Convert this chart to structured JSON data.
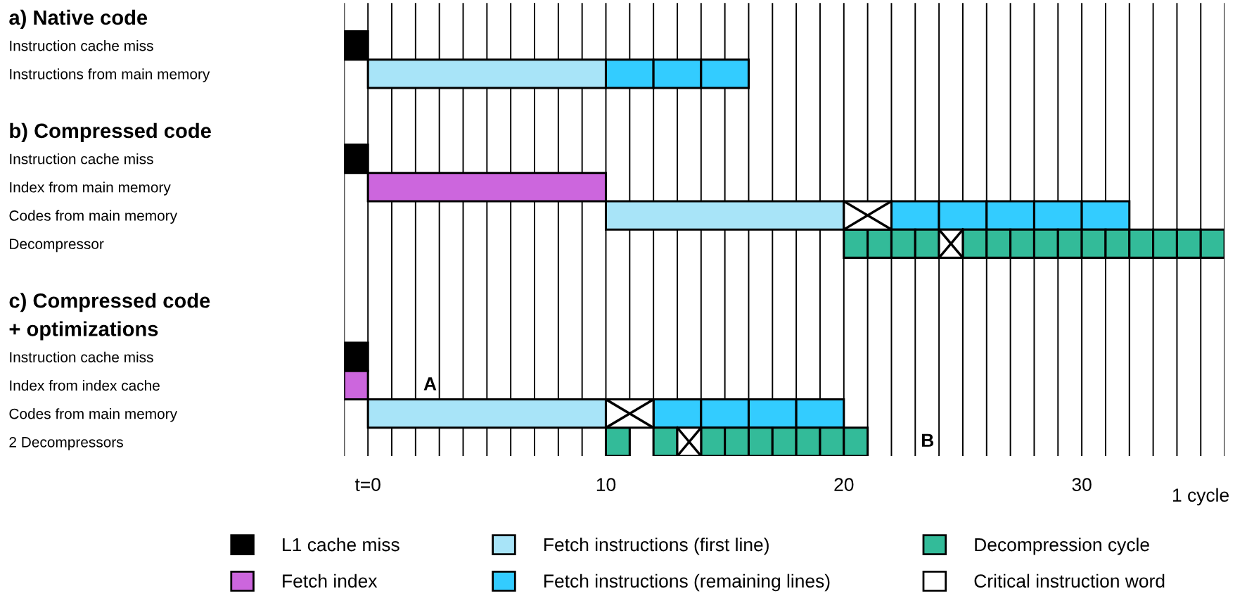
{
  "chart_data": {
    "type": "bar",
    "orientation": "horizontal",
    "categories": [
      "a) Native code",
      "Instruction cache miss",
      "Instructions from main memory",
      null,
      "b) Compressed code",
      "Instruction cache miss",
      "Index from main memory",
      "Codes from main memory",
      "Decompressor",
      null,
      "c) Compressed code",
      "+ optimizations",
      "Instruction cache miss",
      "Index from index cache",
      "Codes from main memory",
      "2 Decompressors"
    ],
    "series": [
      {
        "name": "L1 cache miss",
        "color": "#000000",
        "values": [
          null,
          1,
          null,
          null,
          null,
          1,
          null,
          null,
          null,
          null,
          null,
          null,
          1,
          null,
          null,
          null
        ],
        "base": [
          null,
          -1,
          null,
          null,
          null,
          -1,
          null,
          null,
          null,
          null,
          null,
          null,
          -1,
          null,
          null,
          null
        ]
      },
      {
        "name": "Fetch index",
        "color": "#cc66dd",
        "values": [
          null,
          null,
          null,
          null,
          null,
          null,
          10,
          null,
          null,
          null,
          null,
          null,
          null,
          1,
          null,
          null
        ],
        "base": [
          null,
          null,
          null,
          null,
          null,
          null,
          0,
          null,
          null,
          null,
          null,
          null,
          null,
          -1,
          null,
          null
        ]
      },
      {
        "name": "Fetch instructions (first line)",
        "color": "#a8e4f8",
        "values": [
          null,
          null,
          10,
          null,
          null,
          null,
          null,
          10,
          null,
          null,
          null,
          null,
          null,
          null,
          10,
          null
        ],
        "base": [
          null,
          null,
          0,
          null,
          null,
          null,
          null,
          10,
          null,
          null,
          null,
          null,
          null,
          null,
          0,
          null
        ]
      },
      {
        "name": "Fetch instructions (remaining lines)",
        "color": "#33ccff",
        "values": [
          null,
          null,
          2,
          null,
          null,
          null,
          null,
          2,
          null,
          null,
          null,
          null,
          null,
          null,
          2,
          null
        ],
        "base": [
          null,
          null,
          10,
          null,
          null,
          null,
          null,
          22,
          null,
          null,
          null,
          null,
          null,
          null,
          12,
          null
        ]
      },
      {
        "color": "#33ccff",
        "values": [
          null,
          null,
          2,
          null,
          null,
          null,
          null,
          2,
          null,
          null,
          null,
          null,
          null,
          null,
          2,
          null
        ],
        "base": [
          null,
          null,
          12,
          null,
          null,
          null,
          null,
          24,
          null,
          null,
          null,
          null,
          null,
          null,
          14,
          null
        ]
      },
      {
        "color": "#33ccff",
        "values": [
          null,
          null,
          2,
          null,
          null,
          null,
          null,
          2,
          null,
          null,
          null,
          null,
          null,
          null,
          2,
          null
        ],
        "base": [
          null,
          null,
          14,
          null,
          null,
          null,
          null,
          26,
          null,
          null,
          null,
          null,
          null,
          null,
          16,
          null
        ]
      },
      {
        "color": "#33ccff",
        "values": [
          null,
          null,
          null,
          null,
          null,
          null,
          null,
          2,
          null,
          null,
          null,
          null,
          null,
          null,
          2,
          null
        ],
        "base": [
          null,
          null,
          null,
          null,
          null,
          null,
          null,
          28,
          null,
          null,
          null,
          null,
          null,
          null,
          18,
          null
        ]
      },
      {
        "color": "#33ccff",
        "values": [
          null,
          null,
          null,
          null,
          null,
          null,
          null,
          2,
          null,
          null,
          null,
          null,
          null,
          null,
          null,
          null
        ],
        "base": [
          null,
          null,
          null,
          null,
          null,
          null,
          null,
          30,
          null,
          null,
          null,
          null,
          null,
          null,
          null,
          null
        ]
      },
      {
        "name": "Decompression cycle",
        "color": "#33bb99",
        "values": [
          null,
          null,
          null,
          null,
          null,
          null,
          null,
          null,
          1,
          null,
          null,
          null,
          null,
          null,
          null,
          1
        ],
        "base": [
          null,
          null,
          null,
          null,
          null,
          null,
          null,
          null,
          20,
          null,
          null,
          null,
          null,
          null,
          null,
          10
        ]
      },
      {
        "color": "#33bb99",
        "values": [
          null,
          null,
          null,
          null,
          null,
          null,
          null,
          null,
          1,
          null,
          null,
          null,
          null,
          null,
          null,
          1
        ],
        "base": [
          null,
          null,
          null,
          null,
          null,
          null,
          null,
          null,
          21,
          null,
          null,
          null,
          null,
          null,
          null,
          12
        ]
      },
      {
        "color": "#33bb99",
        "values": [
          null,
          null,
          null,
          null,
          null,
          null,
          null,
          null,
          1,
          null,
          null,
          null,
          null,
          null,
          null,
          1
        ],
        "base": [
          null,
          null,
          null,
          null,
          null,
          null,
          null,
          null,
          22,
          null,
          null,
          null,
          null,
          null,
          null,
          14
        ]
      },
      {
        "color": "#33bb99",
        "values": [
          null,
          null,
          null,
          null,
          null,
          null,
          null,
          null,
          1,
          null,
          null,
          null,
          null,
          null,
          null,
          1
        ],
        "base": [
          null,
          null,
          null,
          null,
          null,
          null,
          null,
          null,
          23,
          null,
          null,
          null,
          null,
          null,
          null,
          15
        ]
      },
      {
        "color": "#33bb99",
        "values": [
          null,
          null,
          null,
          null,
          null,
          null,
          null,
          null,
          1,
          null,
          null,
          null,
          null,
          null,
          null,
          1
        ],
        "base": [
          null,
          null,
          null,
          null,
          null,
          null,
          null,
          null,
          25,
          null,
          null,
          null,
          null,
          null,
          null,
          16
        ]
      },
      {
        "color": "#33bb99",
        "values": [
          null,
          null,
          null,
          null,
          null,
          null,
          null,
          null,
          1,
          null,
          null,
          null,
          null,
          null,
          null,
          1
        ],
        "base": [
          null,
          null,
          null,
          null,
          null,
          null,
          null,
          null,
          26,
          null,
          null,
          null,
          null,
          null,
          null,
          17
        ]
      },
      {
        "color": "#33bb99",
        "values": [
          null,
          null,
          null,
          null,
          null,
          null,
          null,
          null,
          1,
          null,
          null,
          null,
          null,
          null,
          null,
          1
        ],
        "base": [
          null,
          null,
          null,
          null,
          null,
          null,
          null,
          null,
          27,
          null,
          null,
          null,
          null,
          null,
          null,
          18
        ]
      },
      {
        "color": "#33bb99",
        "values": [
          null,
          null,
          null,
          null,
          null,
          null,
          null,
          null,
          1,
          null,
          null,
          null,
          null,
          null,
          null,
          1
        ],
        "base": [
          null,
          null,
          null,
          null,
          null,
          null,
          null,
          null,
          28,
          null,
          null,
          null,
          null,
          null,
          null,
          19
        ]
      },
      {
        "color": "#33bb99",
        "values": [
          null,
          null,
          null,
          null,
          null,
          null,
          null,
          null,
          1,
          null,
          null,
          null,
          null,
          null,
          null,
          1
        ],
        "base": [
          null,
          null,
          null,
          null,
          null,
          null,
          null,
          null,
          29,
          null,
          null,
          null,
          null,
          null,
          null,
          20
        ]
      },
      {
        "color": "#33bb99",
        "values": [
          null,
          null,
          null,
          null,
          null,
          null,
          null,
          null,
          1,
          null,
          null,
          null,
          null,
          null,
          null,
          null
        ],
        "base": [
          null,
          null,
          null,
          null,
          null,
          null,
          null,
          null,
          30,
          null,
          null,
          null,
          null,
          null,
          null,
          null
        ]
      },
      {
        "color": "#33bb99",
        "values": [
          null,
          null,
          null,
          null,
          null,
          null,
          null,
          null,
          1,
          null,
          null,
          null,
          null,
          null,
          null,
          null
        ],
        "base": [
          null,
          null,
          null,
          null,
          null,
          null,
          null,
          null,
          31,
          null,
          null,
          null,
          null,
          null,
          null,
          null
        ]
      },
      {
        "color": "#33bb99",
        "values": [
          null,
          null,
          null,
          null,
          null,
          null,
          null,
          null,
          1,
          null,
          null,
          null,
          null,
          null,
          null,
          null
        ],
        "base": [
          null,
          null,
          null,
          null,
          null,
          null,
          null,
          null,
          32,
          null,
          null,
          null,
          null,
          null,
          null,
          null
        ]
      },
      {
        "color": "#33bb99",
        "values": [
          null,
          null,
          null,
          null,
          null,
          null,
          null,
          null,
          1,
          null,
          null,
          null,
          null,
          null,
          null,
          null
        ],
        "base": [
          null,
          null,
          null,
          null,
          null,
          null,
          null,
          null,
          33,
          null,
          null,
          null,
          null,
          null,
          null,
          null
        ]
      },
      {
        "color": "#33bb99",
        "values": [
          null,
          null,
          null,
          null,
          null,
          null,
          null,
          null,
          1,
          null,
          null,
          null,
          null,
          null,
          null,
          null
        ],
        "base": [
          null,
          null,
          null,
          null,
          null,
          null,
          null,
          null,
          34,
          null,
          null,
          null,
          null,
          null,
          null,
          null
        ]
      },
      {
        "color": "#33bb99",
        "values": [
          null,
          null,
          null,
          null,
          null,
          null,
          null,
          null,
          1,
          null,
          null,
          null,
          null,
          null,
          null,
          null
        ],
        "base": [
          null,
          null,
          null,
          null,
          null,
          null,
          null,
          null,
          35,
          null,
          null,
          null,
          null,
          null,
          null,
          null
        ]
      },
      {
        "name": "Critical instruction word",
        "color": "#ffffff",
        "marker": "cross",
        "values": [
          null,
          null,
          null,
          null,
          null,
          null,
          null,
          2,
          1,
          null,
          null,
          null,
          null,
          null,
          2,
          1
        ],
        "base": [
          null,
          null,
          null,
          null,
          null,
          null,
          null,
          20,
          24,
          null,
          null,
          null,
          null,
          null,
          10,
          13
        ]
      }
    ],
    "xlim": [
      -1,
      36
    ],
    "xticks": [
      {
        "value": -1,
        "label": null
      },
      {
        "value": 0,
        "label": "t=0"
      },
      {
        "value": 1,
        "label": null
      },
      {
        "value": 2,
        "label": null
      },
      {
        "value": 3,
        "label": null
      },
      {
        "value": 4,
        "label": null
      },
      {
        "value": 5,
        "label": null
      },
      {
        "value": 6,
        "label": null
      },
      {
        "value": 7,
        "label": null
      },
      {
        "value": 8,
        "label": null
      },
      {
        "value": 9,
        "label": null
      },
      10,
      {
        "value": 11,
        "label": null
      },
      {
        "value": 12,
        "label": null
      },
      {
        "value": 13,
        "label": null
      },
      {
        "value": 14,
        "label": null
      },
      {
        "value": 15,
        "label": null
      },
      {
        "value": 16,
        "label": null
      },
      {
        "value": 17,
        "label": null
      },
      {
        "value": 18,
        "label": null
      },
      {
        "value": 19,
        "label": null
      },
      20,
      {
        "value": 21,
        "label": null
      },
      {
        "value": 22,
        "label": null
      },
      {
        "value": 23,
        "label": null
      },
      {
        "value": 24,
        "label": null
      },
      {
        "value": 25,
        "label": null
      },
      {
        "value": 26,
        "label": null
      },
      {
        "value": 27,
        "label": null
      },
      {
        "value": 28,
        "label": null
      },
      {
        "value": 29,
        "label": null
      },
      30,
      {
        "value": 31,
        "label": null
      },
      {
        "value": 32,
        "label": null
      },
      {
        "value": 33,
        "label": null
      },
      {
        "value": 34,
        "label": null
      },
      {
        "value": 35,
        "label": null
      },
      {
        "value": 36,
        "label": null
      }
    ],
    "grid": "x",
    "legend": "bottom",
    "annotations": [
      "A",
      "B",
      "1 cycle"
    ]
  }
}
